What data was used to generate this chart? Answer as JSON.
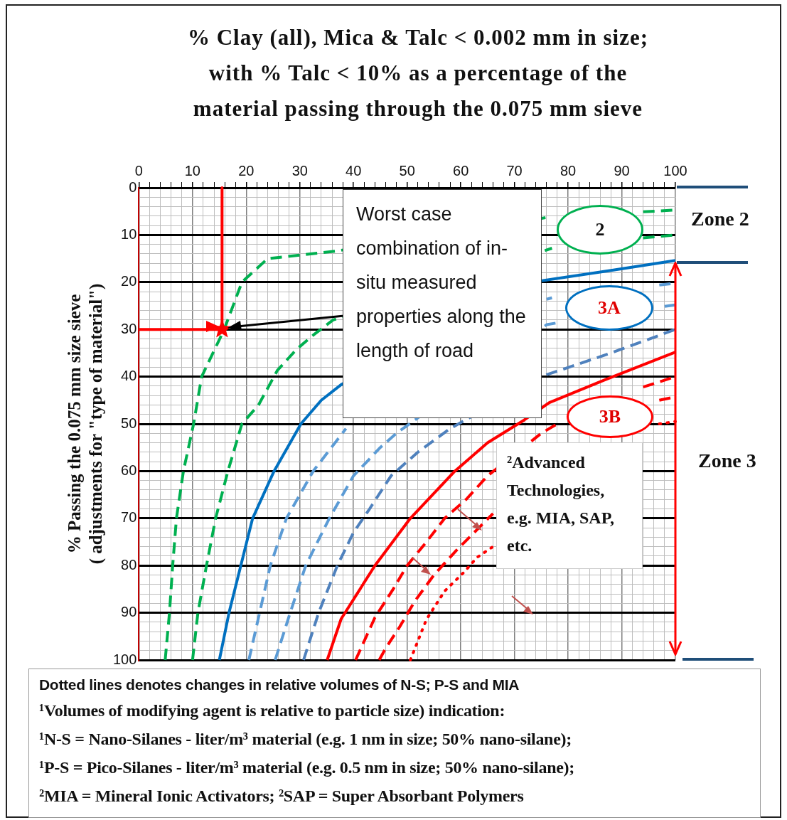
{
  "chart_data": {
    "type": "line",
    "title": "% Clay (all), Mica & Talc < 0.002 mm in size; with % Talc < 10% as a percentage of the material passing through the 0.075 mm sieve",
    "ylabel": "% Passing the 0.075 mm size sieve\n( adjustments for \"type of material\")",
    "xlim": [
      0,
      100
    ],
    "ylim": [
      100,
      0
    ],
    "xticks": [
      0,
      {
        "value": 2,
        "label": null
      },
      {
        "value": 4,
        "label": null
      },
      {
        "value": 6,
        "label": null
      },
      {
        "value": 8,
        "label": null
      },
      10,
      {
        "value": 12,
        "label": null
      },
      {
        "value": 14,
        "label": null
      },
      {
        "value": 16,
        "label": null
      },
      {
        "value": 18,
        "label": null
      },
      20,
      {
        "value": 22,
        "label": null
      },
      {
        "value": 24,
        "label": null
      },
      {
        "value": 26,
        "label": null
      },
      {
        "value": 28,
        "label": null
      },
      30,
      {
        "value": 32,
        "label": null
      },
      {
        "value": 34,
        "label": null
      },
      {
        "value": 36,
        "label": null
      },
      {
        "value": 38,
        "label": null
      },
      40,
      {
        "value": 42,
        "label": null
      },
      {
        "value": 44,
        "label": null
      },
      {
        "value": 46,
        "label": null
      },
      {
        "value": 48,
        "label": null
      },
      50,
      {
        "value": 52,
        "label": null
      },
      {
        "value": 54,
        "label": null
      },
      {
        "value": 56,
        "label": null
      },
      {
        "value": 58,
        "label": null
      },
      60,
      {
        "value": 62,
        "label": null
      },
      {
        "value": 64,
        "label": null
      },
      {
        "value": 66,
        "label": null
      },
      {
        "value": 68,
        "label": null
      },
      70,
      {
        "value": 72,
        "label": null
      },
      {
        "value": 74,
        "label": null
      },
      {
        "value": 76,
        "label": null
      },
      {
        "value": 78,
        "label": null
      },
      80,
      {
        "value": 82,
        "label": null
      },
      {
        "value": 84,
        "label": null
      },
      {
        "value": 86,
        "label": null
      },
      {
        "value": 88,
        "label": null
      },
      90,
      {
        "value": 92,
        "label": null
      },
      {
        "value": 94,
        "label": null
      },
      {
        "value": 96,
        "label": null
      },
      {
        "value": 98,
        "label": null
      },
      100
    ],
    "yticks": [
      0,
      {
        "value": 2,
        "label": null
      },
      {
        "value": 4,
        "label": null
      },
      {
        "value": 6,
        "label": null
      },
      {
        "value": 8,
        "label": null
      },
      10,
      {
        "value": 12,
        "label": null
      },
      {
        "value": 14,
        "label": null
      },
      {
        "value": 16,
        "label": null
      },
      {
        "value": 18,
        "label": null
      },
      20,
      {
        "value": 22,
        "label": null
      },
      {
        "value": 24,
        "label": null
      },
      {
        "value": 26,
        "label": null
      },
      {
        "value": 28,
        "label": null
      },
      30,
      {
        "value": 32,
        "label": null
      },
      {
        "value": 34,
        "label": null
      },
      {
        "value": 36,
        "label": null
      },
      {
        "value": 38,
        "label": null
      },
      40,
      {
        "value": 42,
        "label": null
      },
      {
        "value": 44,
        "label": null
      },
      {
        "value": 46,
        "label": null
      },
      {
        "value": 48,
        "label": null
      },
      50,
      {
        "value": 52,
        "label": null
      },
      {
        "value": 54,
        "label": null
      },
      {
        "value": 56,
        "label": null
      },
      {
        "value": 58,
        "label": null
      },
      60,
      {
        "value": 62,
        "label": null
      },
      {
        "value": 64,
        "label": null
      },
      {
        "value": 66,
        "label": null
      },
      {
        "value": 68,
        "label": null
      },
      70,
      {
        "value": 72,
        "label": null
      },
      {
        "value": 74,
        "label": null
      },
      {
        "value": 76,
        "label": null
      },
      {
        "value": 78,
        "label": null
      },
      80,
      {
        "value": 82,
        "label": null
      },
      {
        "value": 84,
        "label": null
      },
      {
        "value": 86,
        "label": null
      },
      {
        "value": 88,
        "label": null
      },
      90,
      {
        "value": 92,
        "label": null
      },
      {
        "value": 94,
        "label": null
      },
      {
        "value": 96,
        "label": null
      },
      {
        "value": 98,
        "label": null
      },
      100
    ],
    "grid": true,
    "legend": false,
    "marker": "none",
    "series": [
      {
        "color": "#00b050",
        "line_style": "dashed",
        "x": [
          4.9,
          5.7,
          6.3,
          7,
          8.3,
          10.2,
          11.7,
          15.9,
          19.2,
          24,
          36.8,
          76,
          88,
          94,
          100
        ],
        "values": [
          100,
          90,
          80,
          70,
          60,
          50,
          40,
          30,
          20,
          15,
          13.4,
          6.3,
          null,
          5.1,
          4.7
        ]
      },
      {
        "color": "#00b050",
        "line_style": "dashed",
        "x": [
          10,
          11,
          12.6,
          14.3,
          16.6,
          19.2,
          22.3,
          25.8,
          29.4,
          32.5,
          36.2,
          77,
          88,
          94,
          100
        ],
        "values": [
          100,
          90,
          80,
          70,
          60,
          50,
          46,
          38.7,
          34.2,
          31.2,
          28,
          12.8,
          null,
          10.6,
          10
        ]
      },
      {
        "color": "#0070c0",
        "line_style": "solid",
        "x": [
          15,
          16.8,
          19,
          21.2,
          25.2,
          30.2,
          34,
          37.7,
          75,
          88,
          100
        ],
        "values": [
          100,
          90,
          80,
          70,
          60,
          50,
          45,
          41.7,
          19.7,
          17.5,
          15.4
        ]
      },
      {
        "color": "#5b9bd5",
        "line_style": "dashed",
        "x": [
          20.5,
          22.5,
          24.5,
          27.5,
          32.5,
          38.6,
          60,
          76,
          77,
          88,
          97,
          100
        ],
        "values": [
          100,
          90,
          80,
          70,
          60,
          51,
          null,
          23.6,
          23.3,
          null,
          20.6,
          20.2
        ]
      },
      {
        "color": "#5b9bd5",
        "line_style": "dashed",
        "x": [
          25.4,
          28.2,
          31.1,
          35.5,
          40,
          45,
          48,
          76,
          78,
          88,
          98,
          100
        ],
        "values": [
          100,
          90,
          80,
          70,
          61,
          55,
          52,
          29,
          28.6,
          null,
          25.1,
          24.8
        ]
      },
      {
        "color": "#4f81bd",
        "line_style": "dashed",
        "x": [
          30.7,
          33.5,
          37,
          40,
          43,
          47,
          52,
          58,
          76,
          88,
          100
        ],
        "values": [
          100,
          90,
          80,
          73,
          68,
          61,
          56,
          51,
          39.6,
          35,
          30
        ]
      },
      {
        "color": "#ff0000",
        "line_style": "solid",
        "x": [
          35.1,
          37.7,
          44,
          50.6,
          58.9,
          65,
          71.8,
          76.5,
          86.6,
          100
        ],
        "values": [
          100,
          91.3,
          80,
          70,
          60,
          54,
          49.2,
          45.5,
          40.8,
          34.8
        ]
      },
      {
        "color": "#ff0000",
        "line_style": "dashed",
        "x": [
          40.4,
          44,
          47.4,
          50,
          53.6,
          57,
          61,
          65,
          75,
          78,
          86,
          94,
          100
        ],
        "values": [
          100,
          91,
          85,
          80,
          75,
          70,
          66,
          61,
          52,
          50,
          null,
          42.2,
          40
        ]
      },
      {
        "color": "#ff0000",
        "line_style": "dashed",
        "x": [
          44.8,
          46,
          48.6,
          51.4,
          55,
          59,
          66,
          84,
          97,
          100
        ],
        "values": [
          100,
          97.5,
          93,
          87.6,
          82,
          77,
          69,
          null,
          45,
          44.3
        ]
      },
      {
        "color": "#ff0000",
        "line_style": "dotted",
        "x": [
          50.6,
          53.6,
          57,
          60.7,
          63,
          66,
          94.3,
          97,
          100
        ],
        "values": [
          100,
          91.4,
          85.4,
          81.3,
          78.3,
          76,
          null,
          50,
          49.5
        ]
      },
      {
        "color": "#ff0000",
        "line_style": "solid",
        "x": [
          15.5,
          15.5
        ],
        "values": [
          0,
          30
        ]
      },
      {
        "color": "#ff0000",
        "line_style": "solid",
        "x": [
          0,
          15.5
        ],
        "values": [
          30,
          30
        ]
      },
      {
        "type": "scatter",
        "color": "#ff0000",
        "marker": "star",
        "x": [
          15.5
        ],
        "values": [
          30
        ]
      }
    ],
    "annotations": [
      "Worst case combination of in-situ measured properties along the length of road",
      "²Advanced Technologies, e.g. MIA, SAP, etc.",
      "2",
      "3A",
      "3B",
      "Zone 2",
      "Zone 3",
      "Dotted lines denotes changes in relative volumes of N-S; P-S and MIA",
      "¹Volumes of modifying agent is relative to particle size) indication:",
      "¹N-S = Nano-Silanes - liter/m³ material (e.g. 1 nm in size; 50% nano-silane);",
      "¹P-S = Pico-Silanes - liter/m³ material (e.g. 0.5 nm in size; 50% nano-silane);",
      "²MIA = Mineral Ionic Activators; ²SAP = Super Absorbant Polymers"
    ]
  }
}
